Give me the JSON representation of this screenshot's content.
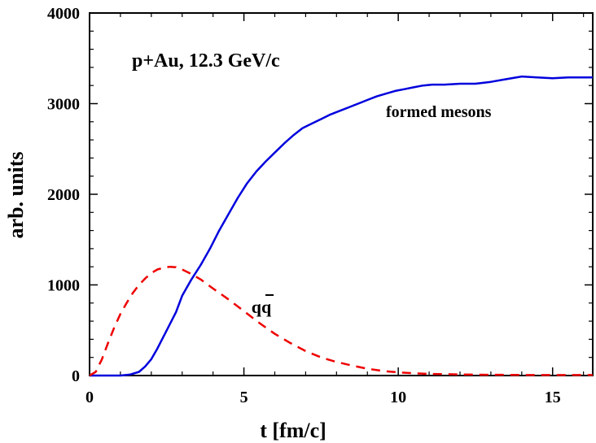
{
  "chart_data": {
    "type": "line",
    "title": "",
    "xlabel": "t [fm/c]",
    "ylabel": "arb. units",
    "xlim": [
      0,
      16.3
    ],
    "ylim": [
      0,
      4000
    ],
    "x_ticks": [
      0,
      5,
      10,
      15
    ],
    "y_ticks": [
      0,
      1000,
      2000,
      3000,
      4000
    ],
    "x_tick_labels": [
      "0",
      "5",
      "10",
      "15"
    ],
    "y_tick_labels": [
      "0",
      "1000",
      "2000",
      "3000",
      "4000"
    ],
    "grid": false,
    "annotations": {
      "system": "p+Au, 12.3 GeV/c",
      "mesons_label": "formed mesons",
      "qq_label": "qq"
    },
    "series": [
      {
        "name": "formed mesons",
        "color": "#0000dd",
        "style": "solid",
        "x": [
          0,
          1.0,
          1.3,
          1.6,
          1.8,
          2.0,
          2.2,
          2.5,
          2.8,
          3.0,
          3.3,
          3.6,
          3.9,
          4.2,
          4.5,
          4.8,
          5.1,
          5.4,
          5.7,
          6.0,
          6.3,
          6.6,
          6.9,
          7.2,
          7.5,
          7.8,
          8.1,
          8.4,
          8.7,
          9.0,
          9.3,
          9.6,
          9.9,
          10.2,
          10.5,
          10.8,
          11.1,
          11.5,
          12.0,
          12.5,
          13.0,
          13.5,
          14.0,
          14.5,
          15.0,
          15.5,
          16.0,
          16.3
        ],
        "y": [
          0,
          0,
          10,
          40,
          100,
          180,
          300,
          500,
          700,
          880,
          1060,
          1220,
          1400,
          1600,
          1780,
          1960,
          2120,
          2250,
          2360,
          2460,
          2560,
          2650,
          2730,
          2780,
          2830,
          2880,
          2920,
          2960,
          3000,
          3040,
          3080,
          3110,
          3140,
          3160,
          3180,
          3200,
          3210,
          3210,
          3220,
          3220,
          3240,
          3270,
          3300,
          3290,
          3280,
          3290,
          3290,
          3290
        ]
      },
      {
        "name": "qq",
        "color": "#ee0000",
        "style": "dashed",
        "x": [
          0,
          0.2,
          0.4,
          0.6,
          0.8,
          1.0,
          1.2,
          1.4,
          1.6,
          1.8,
          2.0,
          2.2,
          2.4,
          2.6,
          2.8,
          3.0,
          3.3,
          3.6,
          4.0,
          4.5,
          5.0,
          5.5,
          6.0,
          6.5,
          7.0,
          7.5,
          8.0,
          8.5,
          9.0,
          9.5,
          10.0,
          10.5,
          11.0,
          12.0,
          13.0,
          14.0,
          15.0,
          16.3
        ],
        "y": [
          0,
          40,
          180,
          360,
          530,
          680,
          800,
          910,
          1000,
          1070,
          1130,
          1170,
          1190,
          1200,
          1195,
          1170,
          1120,
          1060,
          960,
          840,
          710,
          580,
          460,
          360,
          270,
          200,
          150,
          110,
          75,
          50,
          35,
          25,
          18,
          12,
          8,
          6,
          5,
          5
        ]
      }
    ]
  }
}
